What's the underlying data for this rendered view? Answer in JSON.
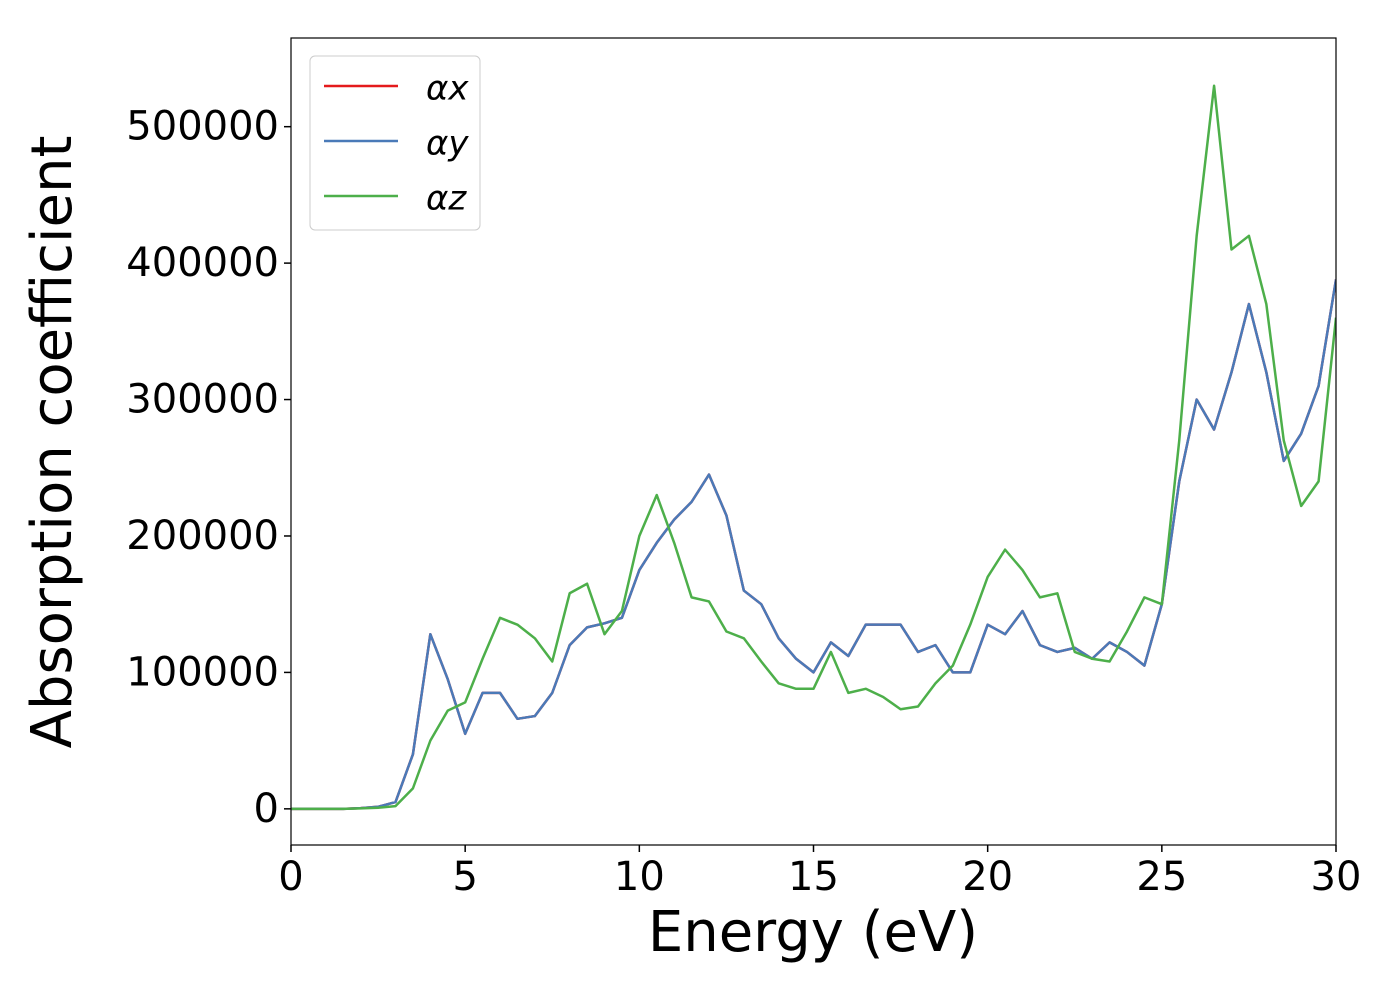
{
  "chart_data": {
    "type": "line",
    "xlabel": "Energy (eV)",
    "ylabel": "Absorption coefficient",
    "x": [
      0,
      0.5,
      1,
      1.5,
      2,
      2.5,
      3,
      3.5,
      4,
      4.5,
      5,
      5.5,
      6,
      6.5,
      7,
      7.5,
      8,
      8.5,
      9,
      9.5,
      10,
      10.5,
      11,
      11.5,
      12,
      12.5,
      13,
      13.5,
      14,
      14.5,
      15,
      15.5,
      16,
      16.5,
      17,
      17.5,
      18,
      18.5,
      19,
      19.5,
      20,
      20.5,
      21,
      21.5,
      22,
      22.5,
      23,
      23.5,
      24,
      24.5,
      25,
      25.5,
      26,
      26.5,
      27,
      27.5,
      28,
      28.5,
      29,
      29.5,
      30
    ],
    "series": [
      {
        "name": "αx",
        "color": "#e41a1c",
        "values": [
          0,
          0,
          0,
          0,
          500,
          1500,
          5000,
          40000,
          128000,
          95000,
          55000,
          85000,
          85000,
          66000,
          68000,
          85000,
          120000,
          133000,
          136000,
          140000,
          175000,
          195000,
          212000,
          225000,
          245000,
          215000,
          160000,
          150000,
          125000,
          110000,
          100000,
          122000,
          112000,
          135000,
          135000,
          135000,
          115000,
          120000,
          100000,
          100000,
          135000,
          128000,
          145000,
          120000,
          115000,
          118000,
          110000,
          122000,
          115000,
          105000,
          150000,
          240000,
          300000,
          278000,
          320000,
          370000,
          320000,
          255000,
          275000,
          310000,
          388000
        ]
      },
      {
        "name": "αy",
        "color": "#4a7ab8",
        "values": [
          0,
          0,
          0,
          0,
          500,
          1500,
          5000,
          40000,
          128000,
          95000,
          55000,
          85000,
          85000,
          66000,
          68000,
          85000,
          120000,
          133000,
          136000,
          140000,
          175000,
          195000,
          212000,
          225000,
          245000,
          215000,
          160000,
          150000,
          125000,
          110000,
          100000,
          122000,
          112000,
          135000,
          135000,
          135000,
          115000,
          120000,
          100000,
          100000,
          135000,
          128000,
          145000,
          120000,
          115000,
          118000,
          110000,
          122000,
          115000,
          105000,
          150000,
          240000,
          300000,
          278000,
          320000,
          370000,
          320000,
          255000,
          275000,
          310000,
          388000
        ]
      },
      {
        "name": "αz",
        "color": "#4daf4a",
        "values": [
          0,
          0,
          0,
          0,
          300,
          800,
          2000,
          15000,
          50000,
          72000,
          78000,
          110000,
          140000,
          135000,
          125000,
          108000,
          158000,
          165000,
          128000,
          145000,
          200000,
          230000,
          195000,
          155000,
          152000,
          130000,
          125000,
          108000,
          92000,
          88000,
          88000,
          115000,
          85000,
          88000,
          82000,
          73000,
          75000,
          92000,
          105000,
          135000,
          170000,
          190000,
          175000,
          155000,
          158000,
          115000,
          110000,
          108000,
          130000,
          155000,
          150000,
          270000,
          420000,
          530000,
          410000,
          420000,
          370000,
          270000,
          222000,
          240000,
          360000
        ]
      }
    ],
    "xlim": [
      0,
      30
    ],
    "xticks": [
      0,
      5,
      10,
      15,
      20,
      25,
      30
    ],
    "ylim": [
      -26500,
      565000
    ],
    "yticks": [
      0,
      100000,
      200000,
      300000,
      400000,
      500000
    ],
    "legend": "upper left"
  }
}
